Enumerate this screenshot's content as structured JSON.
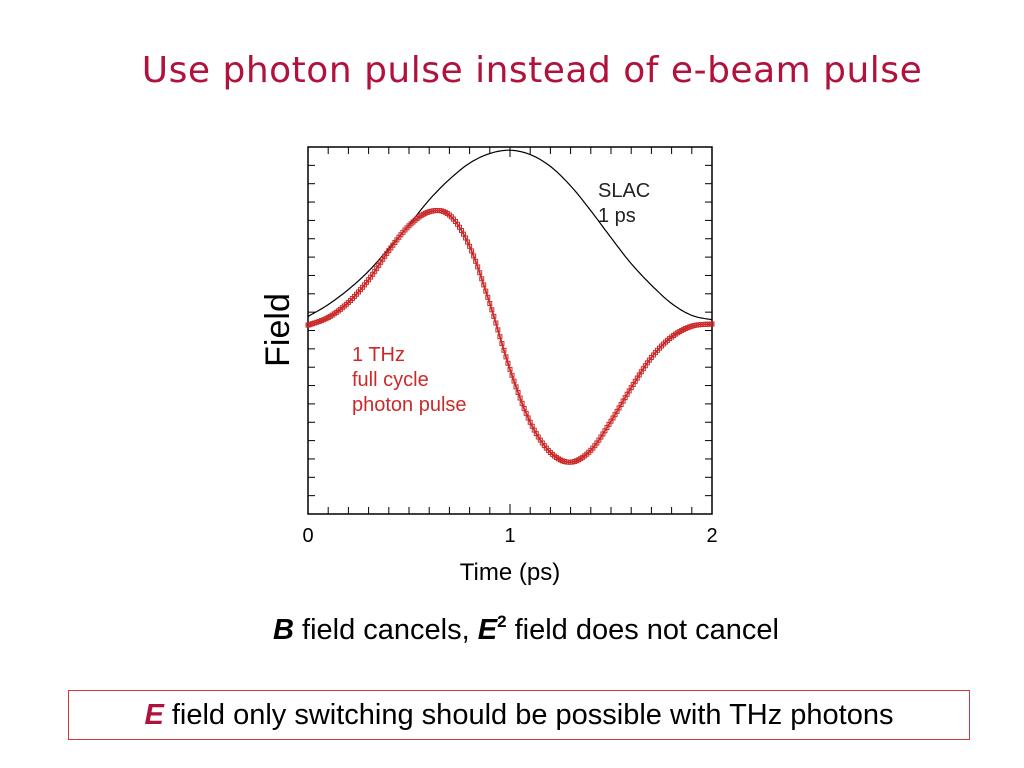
{
  "slide": {
    "title": "Use photon pulse instead of e-beam pulse",
    "caption": {
      "b_symbol": "B",
      "part1": " field cancels, ",
      "e_symbol": "E",
      "e_superscript": "2",
      "part2": " field does not cancel"
    },
    "note": {
      "e_symbol": "E",
      "text": "field only switching should be possible with THz photons"
    }
  },
  "colors": {
    "title": "#b0123b",
    "thz_series": "#cc2a2a",
    "slac_series": "#000000",
    "note_border": "#d23a3a"
  },
  "chart_data": {
    "type": "line",
    "xlabel": "Time (ps)",
    "ylabel": "Field",
    "xlim": [
      0,
      2
    ],
    "ylim": [
      -1.7,
      1.7
    ],
    "x_ticks": [
      0,
      1,
      2
    ],
    "y_tick_labels_shown": false,
    "grid": false,
    "series": [
      {
        "name_lines": [
          "SLAC",
          "1 ps"
        ],
        "marker": "none",
        "x": [
          0.0,
          0.1,
          0.2,
          0.3,
          0.4,
          0.5,
          0.6,
          0.7,
          0.8,
          0.9,
          1.0,
          1.1,
          1.2,
          1.3,
          1.4,
          1.5,
          1.6,
          1.7,
          1.8,
          1.9,
          2.0
        ],
        "y": [
          0.13,
          0.24,
          0.38,
          0.55,
          0.76,
          0.98,
          1.21,
          1.4,
          1.55,
          1.64,
          1.67,
          1.63,
          1.52,
          1.34,
          1.11,
          0.86,
          0.62,
          0.42,
          0.25,
          0.14,
          0.1
        ]
      },
      {
        "name_lines": [
          "1 THz",
          "full cycle",
          "photon pulse"
        ],
        "marker": "square",
        "x": [
          0.0,
          0.1,
          0.2,
          0.3,
          0.4,
          0.5,
          0.6,
          0.7,
          0.8,
          0.9,
          1.0,
          1.1,
          1.2,
          1.3,
          1.4,
          1.5,
          1.6,
          1.7,
          1.8,
          1.9,
          2.0
        ],
        "y": [
          0.05,
          0.12,
          0.26,
          0.47,
          0.74,
          0.97,
          1.1,
          1.07,
          0.78,
          0.25,
          -0.36,
          -0.85,
          -1.13,
          -1.22,
          -1.11,
          -0.84,
          -0.53,
          -0.25,
          -0.06,
          0.04,
          0.06
        ]
      }
    ]
  }
}
